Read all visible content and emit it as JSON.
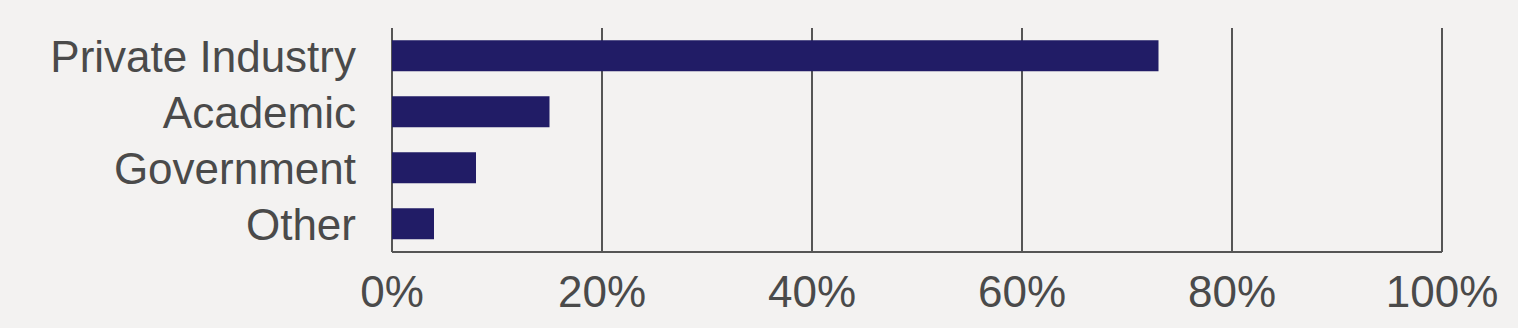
{
  "chart_data": {
    "type": "bar",
    "orientation": "horizontal",
    "categories": [
      "Private Industry",
      "Academic",
      "Government",
      "Other"
    ],
    "values": [
      73,
      15,
      8,
      4
    ],
    "color": "#211c66",
    "xlim": [
      0,
      100
    ],
    "xticks": [
      {
        "value": 0,
        "label": "0%"
      },
      {
        "value": 20,
        "label": "20%"
      },
      {
        "value": 40,
        "label": "40%"
      },
      {
        "value": 60,
        "label": "60%"
      },
      {
        "value": 80,
        "label": "80%"
      },
      {
        "value": 100,
        "label": "100%"
      }
    ],
    "grid": true
  }
}
